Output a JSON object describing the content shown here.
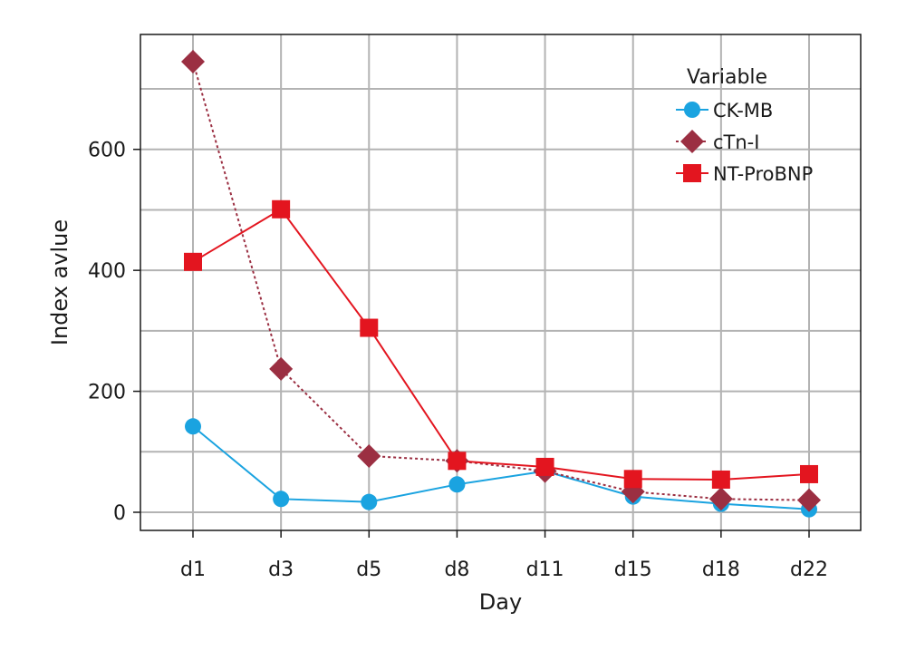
{
  "chart_data": {
    "type": "line",
    "xlabel": "Day",
    "ylabel": "Index avlue",
    "categories": [
      "d1",
      "d3",
      "d5",
      "d8",
      "d11",
      "d15",
      "d18",
      "d22"
    ],
    "ylim": [
      -30,
      790
    ],
    "yticks": [
      0,
      200,
      400,
      600
    ],
    "grid": true,
    "legend": {
      "title": "Variable",
      "placement": "top-right"
    },
    "series": [
      {
        "name": "CK-MB",
        "color": "#1aa3e0",
        "marker": "circle",
        "line_style": "solid",
        "values": [
          142,
          22,
          17,
          46,
          68,
          26,
          14,
          5
        ]
      },
      {
        "name": "cTn-I",
        "color": "#9b2f42",
        "marker": "diamond",
        "line_style": "dotted",
        "values": [
          745,
          237,
          93,
          85,
          68,
          34,
          22,
          20
        ]
      },
      {
        "name": "NT-ProBNP",
        "color": "#e3151f",
        "marker": "square",
        "line_style": "solid",
        "values": [
          414,
          501,
          305,
          85,
          75,
          55,
          54,
          63
        ]
      }
    ]
  }
}
